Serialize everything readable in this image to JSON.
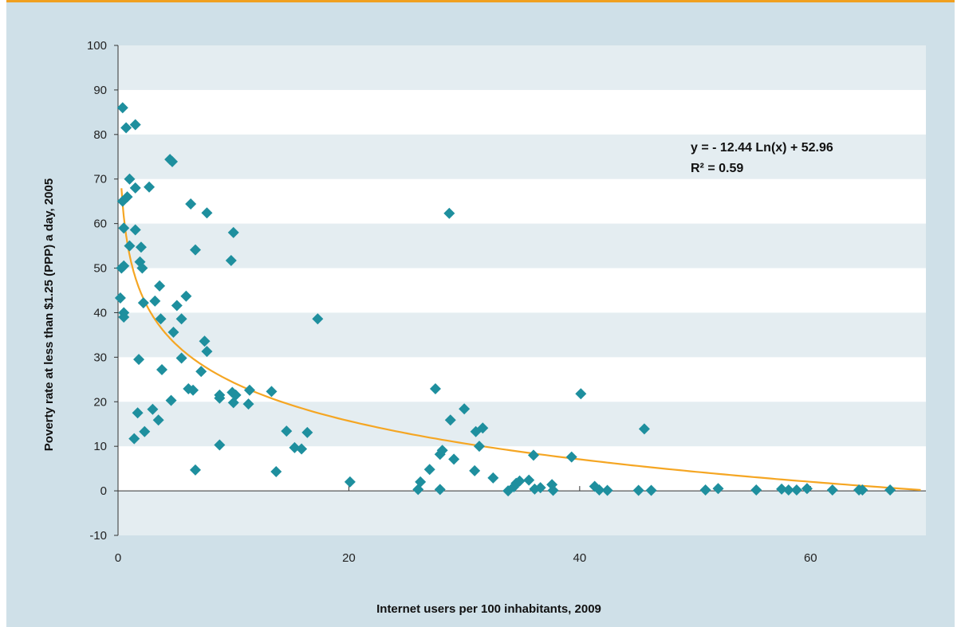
{
  "chart_data": {
    "type": "scatter",
    "xlabel": "Internet users per 100 inhabitants, 2009",
    "ylabel": "Poverty rate at less than $1.25 (PPP) a day, 2005",
    "xlim": [
      0,
      70
    ],
    "ylim": [
      -10,
      100
    ],
    "x_ticks": [
      0,
      20,
      40,
      60
    ],
    "y_ticks": [
      -10,
      0,
      10,
      20,
      30,
      40,
      50,
      60,
      70,
      80,
      90,
      100
    ],
    "grid": "alternating horizontal bands",
    "colors": {
      "points": "#1e8f9e",
      "trendline": "#f5a623",
      "band": "#e4edf1",
      "frame": "#cfe0e8",
      "top_rule": "#f0a020"
    },
    "trendline": {
      "type": "logarithmic",
      "equation": "y = - 12.44 Ln(x) +  52.96",
      "r2_label": "R² =  0.59",
      "a": -12.44,
      "b": 52.96
    },
    "points": [
      [
        0.2,
        43.3
      ],
      [
        0.3,
        50
      ],
      [
        0.4,
        86
      ],
      [
        0.4,
        65
      ],
      [
        0.5,
        50.5
      ],
      [
        0.5,
        59
      ],
      [
        0.5,
        40
      ],
      [
        0.5,
        39
      ],
      [
        0.7,
        81.5
      ],
      [
        0.8,
        66
      ],
      [
        1.0,
        70
      ],
      [
        1.0,
        55
      ],
      [
        1.5,
        82.2
      ],
      [
        1.5,
        68
      ],
      [
        1.5,
        58.6
      ],
      [
        1.4,
        11.7
      ],
      [
        1.7,
        17.5
      ],
      [
        1.8,
        29.5
      ],
      [
        1.9,
        51.4
      ],
      [
        2.0,
        54.7
      ],
      [
        2.1,
        50
      ],
      [
        2.3,
        13.3
      ],
      [
        2.2,
        42.2
      ],
      [
        2.7,
        68.2
      ],
      [
        3.0,
        18.3
      ],
      [
        3.2,
        42.6
      ],
      [
        3.5,
        15.9
      ],
      [
        3.6,
        46
      ],
      [
        3.7,
        38.6
      ],
      [
        3.8,
        27.2
      ],
      [
        4.5,
        74.4
      ],
      [
        4.7,
        73.9
      ],
      [
        4.6,
        20.3
      ],
      [
        4.8,
        35.6
      ],
      [
        5.1,
        41.6
      ],
      [
        5.5,
        38.6
      ],
      [
        5.5,
        29.8
      ],
      [
        5.9,
        43.7
      ],
      [
        6.1,
        22.9
      ],
      [
        6.3,
        64.4
      ],
      [
        6.5,
        22.6
      ],
      [
        6.7,
        54.1
      ],
      [
        6.7,
        4.7
      ],
      [
        7.2,
        26.8
      ],
      [
        7.5,
        33.6
      ],
      [
        7.7,
        31.3
      ],
      [
        7.7,
        62.4
      ],
      [
        8.8,
        21.5
      ],
      [
        8.8,
        20.8
      ],
      [
        8.8,
        10.3
      ],
      [
        9.8,
        51.7
      ],
      [
        10.0,
        58
      ],
      [
        9.9,
        22.1
      ],
      [
        10.0,
        19.8
      ],
      [
        10.2,
        21.5
      ],
      [
        11.3,
        19.5
      ],
      [
        11.4,
        22.6
      ],
      [
        13.3,
        22.3
      ],
      [
        13.7,
        4.3
      ],
      [
        14.6,
        13.4
      ],
      [
        15.3,
        9.7
      ],
      [
        15.9,
        9.4
      ],
      [
        16.4,
        13.1
      ],
      [
        17.3,
        38.6
      ],
      [
        20.1,
        2.0
      ],
      [
        26.0,
        0.3
      ],
      [
        26.2,
        2.0
      ],
      [
        27.0,
        4.8
      ],
      [
        27.5,
        22.9
      ],
      [
        27.9,
        0.3
      ],
      [
        27.9,
        8.2
      ],
      [
        28.1,
        9.1
      ],
      [
        28.7,
        62.3
      ],
      [
        28.8,
        15.9
      ],
      [
        29.1,
        7.1
      ],
      [
        30.0,
        18.4
      ],
      [
        30.9,
        4.5
      ],
      [
        31.0,
        13.3
      ],
      [
        31.3,
        10.0
      ],
      [
        31.6,
        14.1
      ],
      [
        32.5,
        2.9
      ],
      [
        33.8,
        0.0
      ],
      [
        34.3,
        0.9
      ],
      [
        34.5,
        1.7
      ],
      [
        34.8,
        2.2
      ],
      [
        35.6,
        2.4
      ],
      [
        36.0,
        8.0
      ],
      [
        36.1,
        0.4
      ],
      [
        36.6,
        0.7
      ],
      [
        37.6,
        1.4
      ],
      [
        37.7,
        0.1
      ],
      [
        39.3,
        7.6
      ],
      [
        40.1,
        21.8
      ],
      [
        41.3,
        1.0
      ],
      [
        41.7,
        0.2
      ],
      [
        42.4,
        0.1
      ],
      [
        45.1,
        0.1
      ],
      [
        45.6,
        13.9
      ],
      [
        46.2,
        0.1
      ],
      [
        50.9,
        0.2
      ],
      [
        52.0,
        0.5
      ],
      [
        55.3,
        0.2
      ],
      [
        57.5,
        0.4
      ],
      [
        58.1,
        0.2
      ],
      [
        58.8,
        0.2
      ],
      [
        59.7,
        0.5
      ],
      [
        61.9,
        0.2
      ],
      [
        64.2,
        0.2
      ],
      [
        64.5,
        0.2
      ],
      [
        66.9,
        0.2
      ]
    ]
  }
}
